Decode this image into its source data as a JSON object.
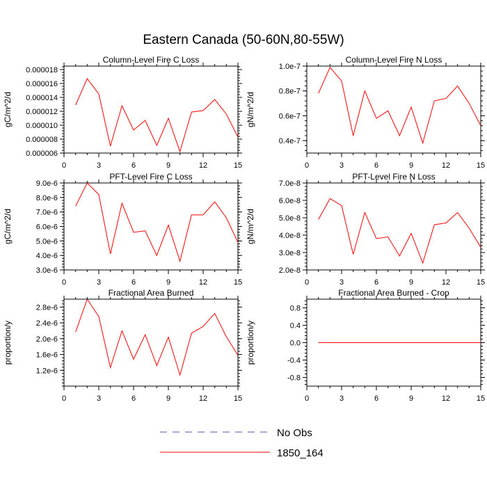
{
  "title": "Eastern Canada (50-60N,80-55W)",
  "colors": {
    "series": "#ff0000",
    "noobs": "#5555aa",
    "axis": "#000000"
  },
  "legend": {
    "placement": "bottom-center",
    "entries": [
      {
        "label": "No Obs",
        "style": "dashed",
        "color": "#5555aa"
      },
      {
        "label": "1850_164",
        "style": "solid",
        "color": "#ff0000"
      }
    ]
  },
  "chart_data": [
    {
      "type": "line",
      "title": "Column-Level Fire C Loss",
      "ylabel": "gC/m^2/d",
      "xlim": [
        0,
        15
      ],
      "ylim": [
        6e-06,
        1.85e-05
      ],
      "xticks": [
        0,
        3,
        6,
        9,
        12,
        15
      ],
      "yticks": [
        6e-06,
        8e-06,
        1e-05,
        1.2e-05,
        1.4e-05,
        1.6e-05,
        1.8e-05
      ],
      "yticklabels": [
        "0.000006",
        "0.000008",
        "0.000010",
        "0.000012",
        "0.000014",
        "0.000016",
        "0.000018"
      ],
      "x": [
        1,
        2,
        3,
        4,
        5,
        6,
        7,
        8,
        9,
        10,
        11,
        12,
        13,
        14,
        15
      ],
      "series": [
        {
          "name": "1850_164",
          "values": [
            1.29e-05,
            1.67e-05,
            1.45e-05,
            7e-06,
            1.28e-05,
            9.3e-06,
            1.07e-05,
            7.1e-06,
            1.1e-05,
            6.2e-06,
            1.19e-05,
            1.21e-05,
            1.37e-05,
            1.16e-05,
            8.3e-06
          ]
        }
      ]
    },
    {
      "type": "line",
      "title": "Column-Level Fire N Loss",
      "ylabel": "gN/m^2/d",
      "xlim": [
        0,
        15
      ],
      "ylim": [
        3e-08,
        1e-07
      ],
      "xticks": [
        0,
        3,
        6,
        9,
        12,
        15
      ],
      "yticks": [
        4e-08,
        6e-08,
        8e-08,
        1e-07
      ],
      "yticklabels": [
        "0.4e-7",
        "0.6e-7",
        "0.8e-7",
        "1.0e-7"
      ],
      "x": [
        1,
        2,
        3,
        4,
        5,
        6,
        7,
        8,
        9,
        10,
        11,
        12,
        13,
        14,
        15
      ],
      "series": [
        {
          "name": "1850_164",
          "values": [
            7.8e-08,
            9.9e-08,
            8.8e-08,
            4.4e-08,
            8e-08,
            5.8e-08,
            6.4e-08,
            4.4e-08,
            6.7e-08,
            3.8e-08,
            7.2e-08,
            7.4e-08,
            8.4e-08,
            7e-08,
            5.2e-08
          ]
        }
      ]
    },
    {
      "type": "line",
      "title": "PFT-Level Fire C Loss",
      "ylabel": "gC/m^2/d",
      "xlim": [
        0,
        15
      ],
      "ylim": [
        3e-06,
        9e-06
      ],
      "xticks": [
        0,
        3,
        6,
        9,
        12,
        15
      ],
      "yticks": [
        3e-06,
        4e-06,
        5e-06,
        6e-06,
        7e-06,
        8e-06,
        9e-06
      ],
      "yticklabels": [
        "3.0e-6",
        "4.0e-6",
        "5.0e-6",
        "6.0e-6",
        "7.0e-6",
        "8.0e-6",
        "9.0e-6"
      ],
      "x": [
        1,
        2,
        3,
        4,
        5,
        6,
        7,
        8,
        9,
        10,
        11,
        12,
        13,
        14,
        15
      ],
      "series": [
        {
          "name": "1850_164",
          "values": [
            7.4e-06,
            9e-06,
            8.2e-06,
            4.1e-06,
            7.6e-06,
            5.6e-06,
            5.7e-06,
            4e-06,
            6.1e-06,
            3.6e-06,
            6.8e-06,
            6.8e-06,
            7.7e-06,
            6.6e-06,
            4.9e-06
          ]
        }
      ]
    },
    {
      "type": "line",
      "title": "PFT-Level Fire N Loss",
      "ylabel": "gN/m^2/d",
      "xlim": [
        0,
        15
      ],
      "ylim": [
        2e-08,
        7e-08
      ],
      "xticks": [
        0,
        3,
        6,
        9,
        12,
        15
      ],
      "yticks": [
        2e-08,
        3e-08,
        4e-08,
        5e-08,
        6e-08,
        7e-08
      ],
      "yticklabels": [
        "2.0e-8",
        "3.0e-8",
        "4.0e-8",
        "5.0e-8",
        "6.0e-8",
        "7.0e-8"
      ],
      "x": [
        1,
        2,
        3,
        4,
        5,
        6,
        7,
        8,
        9,
        10,
        11,
        12,
        13,
        14,
        15
      ],
      "series": [
        {
          "name": "1850_164",
          "values": [
            4.9e-08,
            6.1e-08,
            5.7e-08,
            2.9e-08,
            5.3e-08,
            3.8e-08,
            3.9e-08,
            2.8e-08,
            4.1e-08,
            2.4e-08,
            4.6e-08,
            4.7e-08,
            5.3e-08,
            4.4e-08,
            3.3e-08
          ]
        }
      ]
    },
    {
      "type": "line",
      "title": "Fractional Area Burned",
      "ylabel": "proportion/y",
      "xlim": [
        0,
        15
      ],
      "ylim": [
        8e-07,
        3e-06
      ],
      "xticks": [
        0,
        3,
        6,
        9,
        12,
        15
      ],
      "yticks": [
        1.2e-06,
        1.6e-06,
        2e-06,
        2.4e-06,
        2.8e-06
      ],
      "yticklabels": [
        "1.2e-6",
        "1.6e-6",
        "2.0e-6",
        "2.4e-6",
        "2.8e-6"
      ],
      "x": [
        1,
        2,
        3,
        4,
        5,
        6,
        7,
        8,
        9,
        10,
        11,
        12,
        13,
        14,
        15
      ],
      "series": [
        {
          "name": "1850_164",
          "values": [
            2.17e-06,
            3e-06,
            2.56e-06,
            1.27e-06,
            2.2e-06,
            1.48e-06,
            2.1e-06,
            1.32e-06,
            2.04e-06,
            1.08e-06,
            2.14e-06,
            2.31e-06,
            2.64e-06,
            2.05e-06,
            1.58e-06
          ]
        }
      ]
    },
    {
      "type": "line",
      "title": "Fractional Area Burned - Crop",
      "ylabel": "proportion/y",
      "xlim": [
        0,
        15
      ],
      "ylim": [
        -1,
        1
      ],
      "xticks": [
        0,
        3,
        6,
        9,
        12,
        15
      ],
      "yticks": [
        -0.8,
        -0.4,
        0,
        0.4,
        0.8
      ],
      "yticklabels": [
        "-0.8",
        "-0.4",
        "0.0",
        "0.4",
        "0.8"
      ],
      "x": [
        1,
        2,
        3,
        4,
        5,
        6,
        7,
        8,
        9,
        10,
        11,
        12,
        13,
        14,
        15
      ],
      "series": [
        {
          "name": "1850_164",
          "values": [
            0,
            0,
            0,
            0,
            0,
            0,
            0,
            0,
            0,
            0,
            0,
            0,
            0,
            0,
            0
          ]
        }
      ]
    }
  ]
}
